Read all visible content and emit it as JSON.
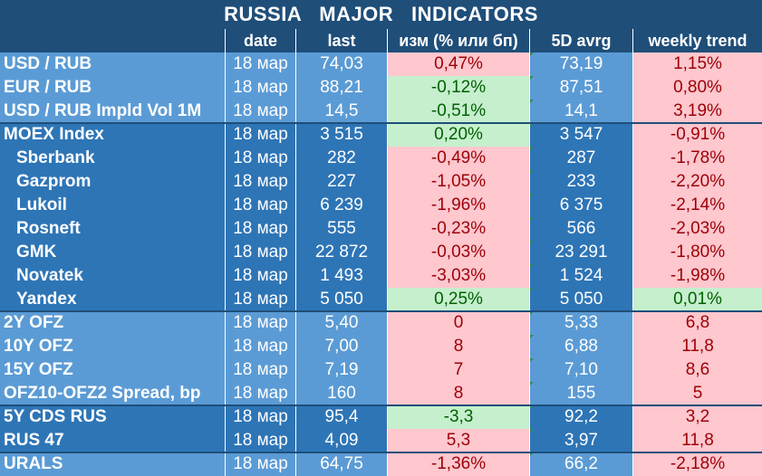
{
  "title": "RUSSIA   MAJOR   INDICATORS",
  "columns": {
    "name": "",
    "date": "date",
    "last": "last",
    "chg": "изм (% или бп)",
    "avg": "5D avrg",
    "trend": "weekly trend"
  },
  "rows": [
    {
      "name": "USD / RUB",
      "date": "18 мар",
      "last": "74,03",
      "chg": "0,47%",
      "avg": "73,19",
      "trend": "1,15%"
    },
    {
      "name": "EUR / RUB",
      "date": "18 мар",
      "last": "88,21",
      "chg": "-0,12%",
      "avg": "87,51",
      "trend": "0,80%"
    },
    {
      "name": "USD / RUB Impld Vol 1M",
      "date": "18 мар",
      "last": "14,5",
      "chg": "-0,51%",
      "avg": "14,1",
      "trend": "3,19%"
    },
    {
      "name": "MOEX Index",
      "date": "18 мар",
      "last": "3 515",
      "chg": "0,20%",
      "avg": "3 547",
      "trend": "-0,91%"
    },
    {
      "name": "Sberbank",
      "date": "18 мар",
      "last": "282",
      "chg": "-0,49%",
      "avg": "287",
      "trend": "-1,78%"
    },
    {
      "name": "Gazprom",
      "date": "18 мар",
      "last": "227",
      "chg": "-1,05%",
      "avg": "233",
      "trend": "-2,20%"
    },
    {
      "name": "Lukoil",
      "date": "18 мар",
      "last": "6 239",
      "chg": "-1,96%",
      "avg": "6 375",
      "trend": "-2,14%"
    },
    {
      "name": "Rosneft",
      "date": "18 мар",
      "last": "555",
      "chg": "-0,23%",
      "avg": "566",
      "trend": "-2,03%"
    },
    {
      "name": "GMK",
      "date": "18 мар",
      "last": "22 872",
      "chg": "-0,03%",
      "avg": "23 291",
      "trend": "-1,80%"
    },
    {
      "name": "Novatek",
      "date": "18 мар",
      "last": "1 493",
      "chg": "-3,03%",
      "avg": "1 524",
      "trend": "-1,98%"
    },
    {
      "name": "Yandex",
      "date": "18 мар",
      "last": "5 050",
      "chg": "0,25%",
      "avg": "5 050",
      "trend": "0,01%"
    },
    {
      "name": "2Y OFZ",
      "date": "18 мар",
      "last": "5,40",
      "chg": "0",
      "avg": "5,33",
      "trend": "6,8"
    },
    {
      "name": "10Y OFZ",
      "date": "18 мар",
      "last": "7,00",
      "chg": "8",
      "avg": "6,88",
      "trend": "11,8"
    },
    {
      "name": "15Y OFZ",
      "date": "18 мар",
      "last": "7,19",
      "chg": "7",
      "avg": "7,10",
      "trend": "8,6"
    },
    {
      "name": "OFZ10-OFZ2 Spread, bp",
      "date": "18 мар",
      "last": "160",
      "chg": "8",
      "avg": "155",
      "trend": "5"
    },
    {
      "name": "5Y CDS RUS",
      "date": "18 мар",
      "last": "95,4",
      "chg": "-3,3",
      "avg": "92,2",
      "trend": "3,2"
    },
    {
      "name": "RUS 47",
      "date": "18 мар",
      "last": "4,09",
      "chg": "5,3",
      "avg": "3,97",
      "trend": "11,8"
    },
    {
      "name": "URALS",
      "date": "18 мар",
      "last": "64,75",
      "chg": "-1,36%",
      "avg": "66,2",
      "trend": "-2,18%"
    }
  ],
  "colors": {
    "header": "#1f4e79",
    "group_light": "#5b9bd5",
    "group_dark": "#2e75b6",
    "red_fill": "#ffc7ce",
    "red_text": "#9c0006",
    "green_fill": "#c6efce",
    "green_text": "#006100"
  }
}
